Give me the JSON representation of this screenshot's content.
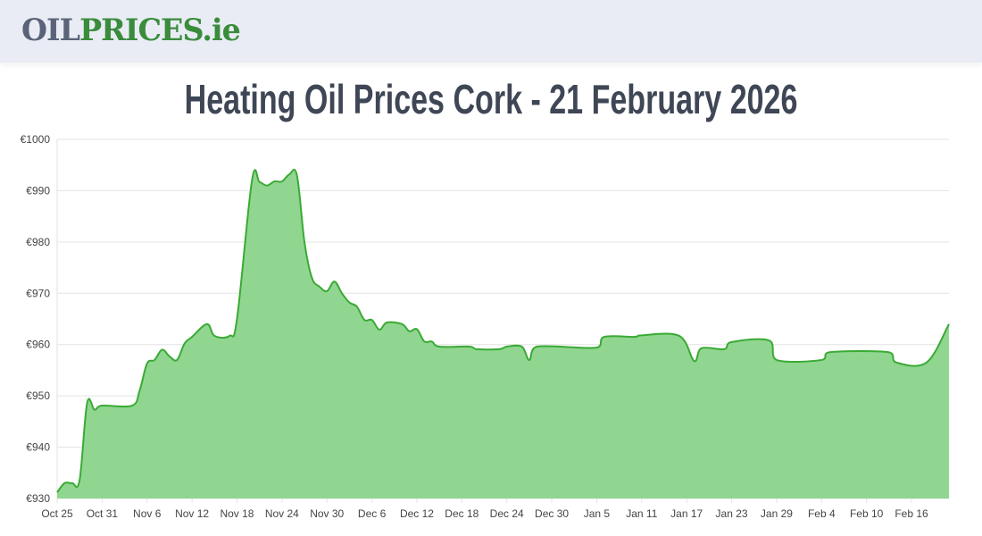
{
  "header": {
    "logo_part1": "OIL",
    "logo_part2": "PRICES.ie"
  },
  "colors": {
    "line": "#3aaa35",
    "fill": "#90d690",
    "grid": "#e3e3e3",
    "header_bg": "#e9ecf4"
  },
  "chart_data": {
    "type": "area",
    "title": "Heating Oil Prices Cork - 21 February 2026",
    "xlabel": "",
    "ylabel": "",
    "ylim": [
      930,
      1000
    ],
    "y_ticks": [
      "€1000",
      "€990",
      "€980",
      "€970",
      "€960",
      "€950",
      "€940",
      "€930"
    ],
    "y_tick_values": [
      1000,
      990,
      980,
      970,
      960,
      950,
      940,
      930
    ],
    "x_ticks": [
      "Oct 25",
      "Oct 31",
      "Nov 6",
      "Nov 12",
      "Nov 18",
      "Nov 24",
      "Nov 30",
      "Dec 6",
      "Dec 12",
      "Dec 18",
      "Dec 24",
      "Dec 30",
      "Jan 5",
      "Jan 11",
      "Jan 17",
      "Jan 23",
      "Jan 29",
      "Feb 4",
      "Feb 10",
      "Feb 16"
    ],
    "xlim": [
      "Oct 25",
      "Feb 21"
    ],
    "grid": true,
    "series": [
      {
        "points": [
          [
            "Oct 25",
            931.2
          ],
          [
            "Oct 26",
            933
          ],
          [
            "Oct 27",
            933
          ],
          [
            "Oct 28",
            933.6
          ],
          [
            "Oct 29",
            948.6
          ],
          [
            "Oct 30",
            947.3
          ],
          [
            "Oct 31",
            948.1
          ],
          [
            "Nov 4",
            948.1
          ],
          [
            "Nov 5",
            951
          ],
          [
            "Nov 6",
            956.3
          ],
          [
            "Nov 7",
            957
          ],
          [
            "Nov 8",
            959
          ],
          [
            "Nov 9",
            957.7
          ],
          [
            "Nov 10",
            957
          ],
          [
            "Nov 11",
            960.2
          ],
          [
            "Nov 12",
            961.5
          ],
          [
            "Nov 14",
            964
          ],
          [
            "Nov 15",
            961.7
          ],
          [
            "Nov 17",
            961.7
          ],
          [
            "Nov 18",
            965
          ],
          [
            "Nov 20",
            992
          ],
          [
            "Nov 21",
            991.7
          ],
          [
            "Nov 22",
            991
          ],
          [
            "Nov 23",
            991.8
          ],
          [
            "Nov 24",
            991.8
          ],
          [
            "Nov 25",
            993.2
          ],
          [
            "Nov 26",
            993
          ],
          [
            "Nov 27",
            980
          ],
          [
            "Nov 28",
            973
          ],
          [
            "Nov 29",
            971.3
          ],
          [
            "Nov 30",
            970.4
          ],
          [
            "Dec 1",
            972.3
          ],
          [
            "Dec 2",
            970
          ],
          [
            "Dec 3",
            968.2
          ],
          [
            "Dec 4",
            967.4
          ],
          [
            "Dec 5",
            964.8
          ],
          [
            "Dec 6",
            964.8
          ],
          [
            "Dec 7",
            962.9
          ],
          [
            "Dec 8",
            964.3
          ],
          [
            "Dec 10",
            964
          ],
          [
            "Dec 11",
            962.6
          ],
          [
            "Dec 12",
            963
          ],
          [
            "Dec 13",
            960.6
          ],
          [
            "Dec 14",
            960.6
          ],
          [
            "Dec 15",
            959.6
          ],
          [
            "Dec 19",
            959.6
          ],
          [
            "Dec 20",
            959.1
          ],
          [
            "Dec 23",
            959.1
          ],
          [
            "Dec 24",
            959.6
          ],
          [
            "Dec 26",
            959.6
          ],
          [
            "Dec 27",
            957
          ],
          [
            "Dec 28",
            959.6
          ],
          [
            "Jan 5",
            959.4
          ],
          [
            "Jan 6",
            961.5
          ],
          [
            "Jan 10",
            961.5
          ],
          [
            "Jan 11",
            961.8
          ],
          [
            "Jan 16",
            961.7
          ],
          [
            "Jan 18",
            956.8
          ],
          [
            "Jan 19",
            959.3
          ],
          [
            "Jan 22",
            959.1
          ],
          [
            "Jan 23",
            960.5
          ],
          [
            "Jan 28",
            960.8
          ],
          [
            "Jan 29",
            957
          ],
          [
            "Feb 4",
            957
          ],
          [
            "Feb 5",
            958.5
          ],
          [
            "Feb 13",
            958.5
          ],
          [
            "Feb 14",
            956.5
          ],
          [
            "Feb 18",
            956.5
          ],
          [
            "Feb 21",
            964
          ]
        ]
      }
    ]
  }
}
